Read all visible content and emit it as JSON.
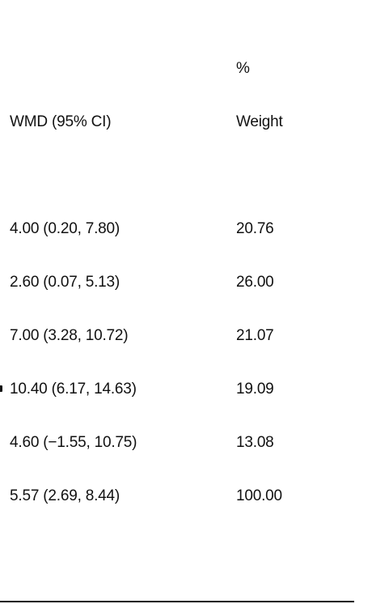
{
  "chart_data": {
    "type": "table",
    "columns": {
      "effect": "WMD (95% CI)",
      "weight_unit": "%",
      "weight": "Weight"
    },
    "rows": [
      {
        "effect": "4.00 (0.20, 7.80)",
        "weight": "20.76"
      },
      {
        "effect": "2.60 (0.07, 5.13)",
        "weight": "26.00"
      },
      {
        "effect": "7.00 (3.28, 10.72)",
        "weight": "21.07"
      },
      {
        "effect": "10.40 (6.17, 14.63)",
        "weight": "19.09"
      },
      {
        "effect": "4.60 (−1.55, 10.75)",
        "weight": "13.08"
      },
      {
        "effect": "5.57 (2.69, 8.44)",
        "weight": "100.00"
      }
    ]
  }
}
